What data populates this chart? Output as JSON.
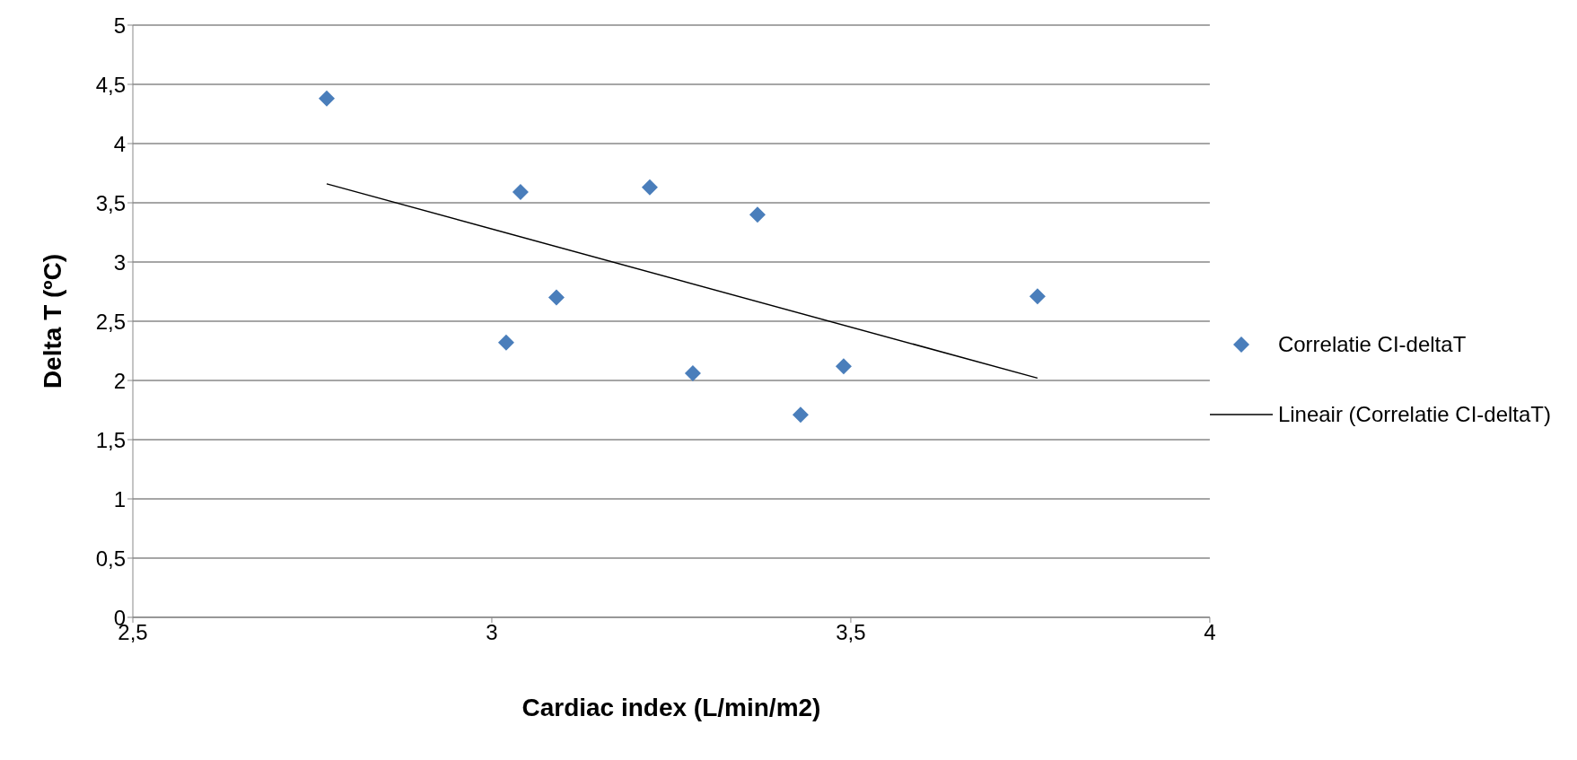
{
  "chart_data": {
    "type": "scatter",
    "xlabel": "Cardiac index (L/min/m2)",
    "ylabel": "Delta T (ºC)",
    "series": [
      {
        "name": "Correlatie CI-deltaT",
        "color": "#4a7ebb",
        "marker": "diamond",
        "x": [
          2.77,
          3.04,
          3.22,
          3.37,
          3.09,
          3.02,
          3.28,
          3.49,
          3.43,
          3.76
        ],
        "values": [
          4.38,
          3.59,
          3.63,
          3.4,
          2.7,
          2.32,
          2.06,
          2.12,
          1.71,
          2.71
        ]
      },
      {
        "name": "Lineair  (Correlatie CI-deltaT)",
        "type": "line",
        "color": "#000000",
        "marker": "none",
        "x": [
          2.77,
          3.76
        ],
        "values": [
          3.66,
          2.02
        ]
      }
    ],
    "xlim": [
      2.5,
      4
    ],
    "xticks": [
      {
        "value": 2.5,
        "label": "2,5"
      },
      3,
      {
        "value": 3.5,
        "label": "3,5"
      },
      4
    ],
    "ylim": [
      0,
      5
    ],
    "yticks": [
      0,
      {
        "value": 0.5,
        "label": "0,5"
      },
      1,
      {
        "value": 1.5,
        "label": "1,5"
      },
      2,
      {
        "value": 2.5,
        "label": "2,5"
      },
      3,
      {
        "value": 3.5,
        "label": "3,5"
      },
      4,
      {
        "value": 4.5,
        "label": "4,5"
      },
      5
    ],
    "grid": "y",
    "legend": "right"
  }
}
